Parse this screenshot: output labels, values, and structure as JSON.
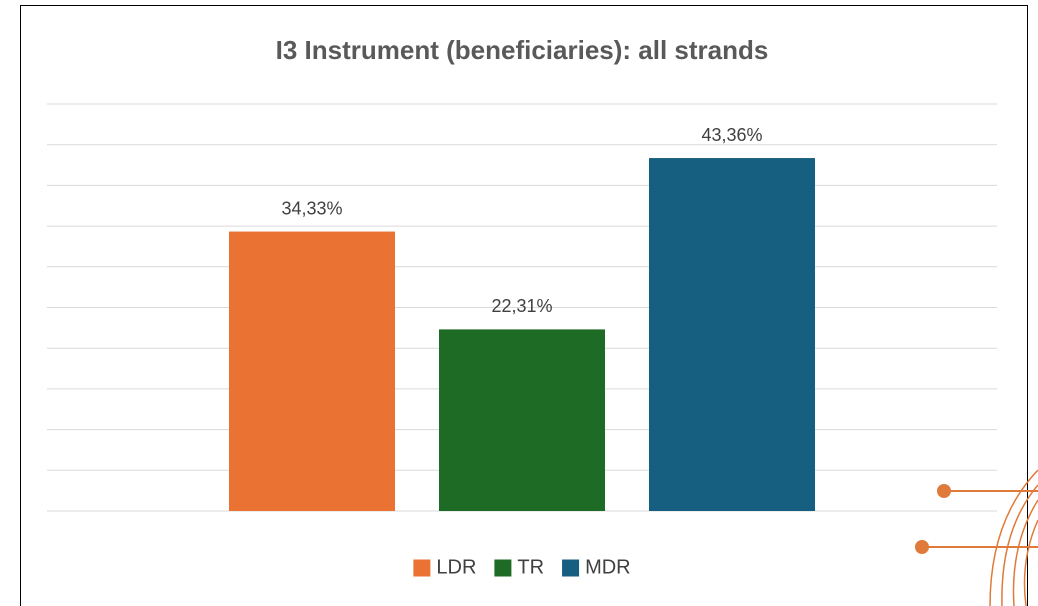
{
  "chart_data": {
    "type": "bar",
    "title": "I3 Instrument (beneficiaries): all strands",
    "series": [
      {
        "name": "LDR",
        "color": "#ea7333",
        "values": [
          34.33
        ],
        "value_labels": [
          "34,33%"
        ]
      },
      {
        "name": "TR",
        "color": "#1d6b24",
        "values": [
          22.31
        ],
        "value_labels": [
          "22,31%"
        ]
      },
      {
        "name": "MDR",
        "color": "#175f80",
        "values": [
          43.36
        ],
        "value_labels": [
          "43,36%"
        ]
      }
    ],
    "ylim": [
      0,
      50
    ],
    "yticks": [
      0,
      5,
      10,
      15,
      20,
      25,
      30,
      35,
      40,
      45,
      50
    ],
    "grid": true,
    "legend": "bottom"
  }
}
